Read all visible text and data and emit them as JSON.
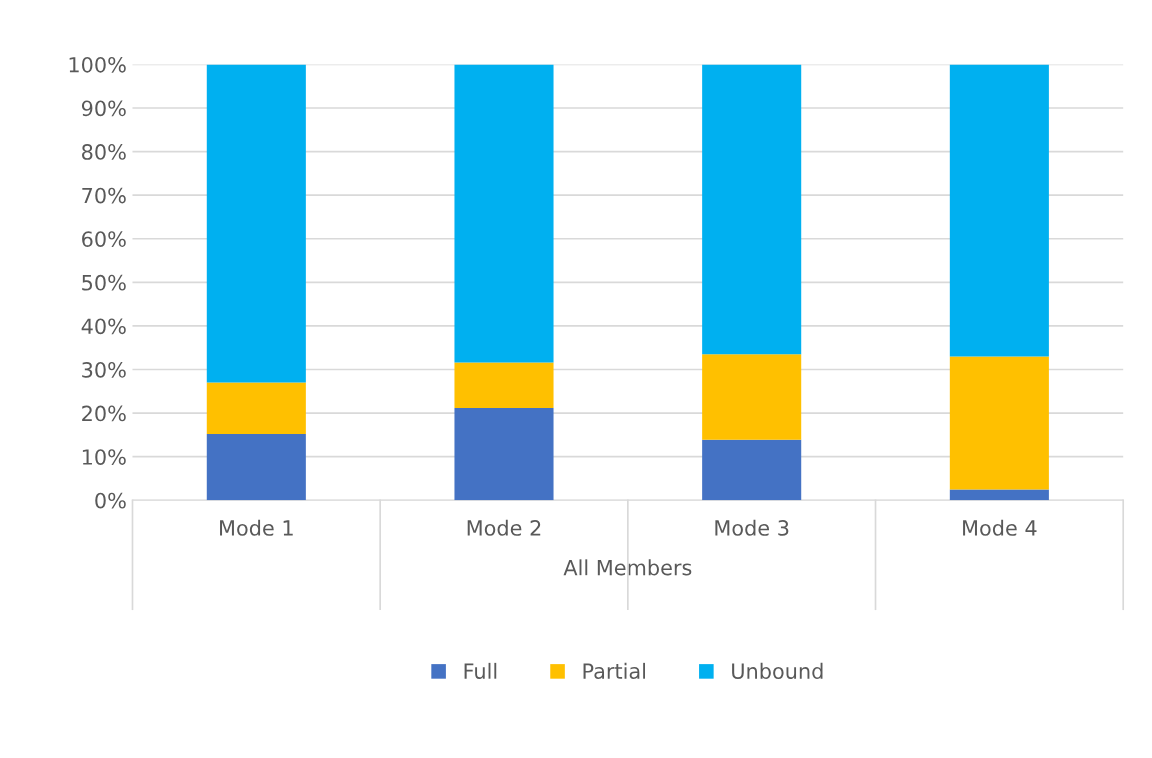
{
  "chart_data": {
    "type": "bar",
    "stacked": true,
    "categories": [
      "Mode 1",
      "Mode 2",
      "Mode 3",
      "Mode 4"
    ],
    "xlabel": "All Members",
    "series": [
      {
        "name": "Full",
        "color": "#4472c4",
        "values": [
          15.2,
          21.2,
          13.9,
          2.5
        ]
      },
      {
        "name": "Partial",
        "color": "#ffc000",
        "values": [
          11.8,
          10.4,
          19.6,
          30.5
        ]
      },
      {
        "name": "Unbound",
        "color": "#00b0f0",
        "values": [
          73.0,
          68.4,
          66.5,
          67.0
        ]
      }
    ],
    "ylim": [
      0,
      100
    ],
    "yticks": [
      {
        "value": 0,
        "label": "0%"
      },
      {
        "value": 10,
        "label": "10%"
      },
      {
        "value": 20,
        "label": "20%"
      },
      {
        "value": 30,
        "label": "30%"
      },
      {
        "value": 40,
        "label": "40%"
      },
      {
        "value": 50,
        "label": "50%"
      },
      {
        "value": 60,
        "label": "60%"
      },
      {
        "value": 70,
        "label": "70%"
      },
      {
        "value": 80,
        "label": "80%"
      },
      {
        "value": 90,
        "label": "90%"
      },
      {
        "value": 100,
        "label": "100%"
      }
    ],
    "grid": "y",
    "legend": "bottom"
  }
}
